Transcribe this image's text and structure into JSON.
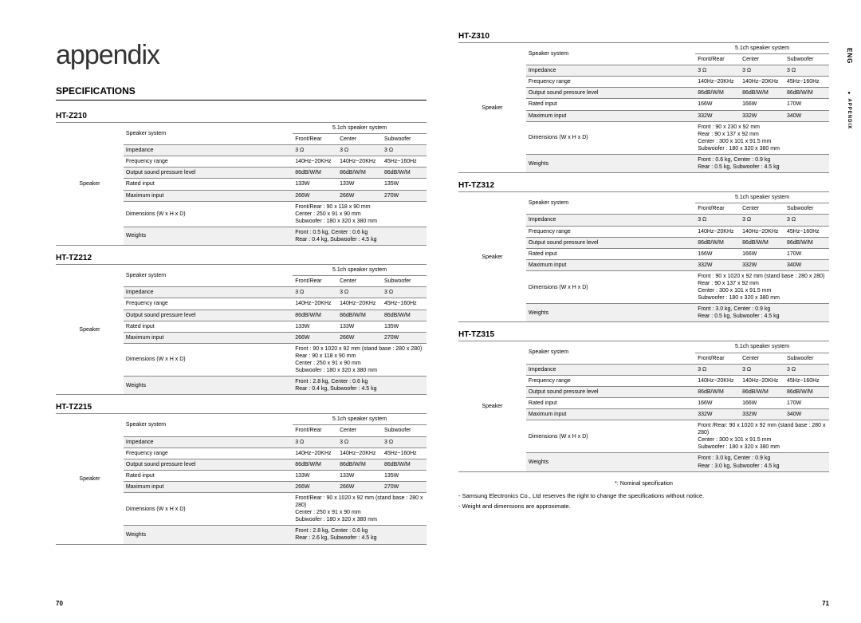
{
  "page_title": "appendix",
  "section_title": "SPECIFICATIONS",
  "side_tab_lang": "ENG",
  "side_tab_section": "● APPENDIX",
  "page_num_left": "70",
  "page_num_right": "71",
  "speaker_system_header": "5.1ch speaker system",
  "channels": [
    "Front/Rear",
    "Center",
    "Subwoofer"
  ],
  "side_label": "Speaker",
  "row_labels": {
    "speaker_system": "Speaker system",
    "impedance": "Impedance",
    "freq": "Frequency range",
    "ospl": "Output sound pressure level",
    "rated": "Rated input",
    "max": "Maximum input",
    "dim": "Dimensions  (W x H x D)",
    "weight": "Weights"
  },
  "models": {
    "HT_Z210": {
      "label": "HT-Z210",
      "impedance": [
        "3 Ω",
        "3 Ω",
        "3 Ω"
      ],
      "freq": [
        "140Hz~20KHz",
        "140Hz~20KHz",
        "45Hz~160Hz"
      ],
      "ospl": [
        "86dB/W/M",
        "86dB/W/M",
        "86dB/W/M"
      ],
      "rated": [
        "133W",
        "133W",
        "135W"
      ],
      "max": [
        "266W",
        "266W",
        "270W"
      ],
      "dim": "Front/Rear : 90 x 118 x 90 mm\nCenter : 250 x 91 x 90 mm\nSubwoofer : 180 x 320 x 380 mm",
      "weight": "Front : 0.5 kg, Center : 0.6 kg\nRear : 0.4 kg, Subwoofer : 4.5 kg"
    },
    "HT_TZ212": {
      "label": "HT-TZ212",
      "impedance": [
        "3 Ω",
        "3 Ω",
        "3 Ω"
      ],
      "freq": [
        "140Hz~20KHz",
        "140Hz~20KHz",
        "45Hz~160Hz"
      ],
      "ospl": [
        "86dB/W/M",
        "86dB/W/M",
        "86dB/W/M"
      ],
      "rated": [
        "133W",
        "133W",
        "135W"
      ],
      "max": [
        "266W",
        "266W",
        "270W"
      ],
      "dim": "Front : 90 x 1020 x 92 mm (stand base : 280 x 280)\nRear : 90 x 118 x 90 mm\nCenter : 250 x 91 x 90 mm\nSubwoofer : 180 x 320 x 380 mm",
      "weight": "Front : 2.8 kg, Center : 0.6 kg\nRear : 0.4 kg, Subwoofer : 4.5 kg"
    },
    "HT_TZ215": {
      "label": "HT-TZ215",
      "impedance": [
        "3 Ω",
        "3 Ω",
        "3 Ω"
      ],
      "freq": [
        "140Hz~20KHz",
        "140Hz~20KHz",
        "45Hz~160Hz"
      ],
      "ospl": [
        "86dB/W/M",
        "86dB/W/M",
        "86dB/W/M"
      ],
      "rated": [
        "133W",
        "133W",
        "135W"
      ],
      "max": [
        "266W",
        "266W",
        "270W"
      ],
      "dim": "Front/Rear : 90 x 1020 x 92 mm (stand base : 280 x 280)\nCenter : 250 x 91 x 90 mm\nSubwoofer : 180 x 320 x 380 mm",
      "weight": "Front : 2.8 kg, Center : 0.6 kg\nRear : 2.6 kg, Subwoofer : 4.5 kg"
    },
    "HT_Z310": {
      "label": "HT-Z310",
      "impedance": [
        "3 Ω",
        "3 Ω",
        "3 Ω"
      ],
      "freq": [
        "140Hz~20KHz",
        "140Hz~20KHz",
        "45Hz~160Hz"
      ],
      "ospl": [
        "86dB/W/M",
        "86dB/W/M",
        "86dB/W/M"
      ],
      "rated": [
        "166W",
        "166W",
        "170W"
      ],
      "max": [
        "332W",
        "332W",
        "340W"
      ],
      "dim": "Front : 90 x 230 x 92 mm\nRear : 90 x 137 x 92 mm\nCenter : 300 x 101 x 91.5 mm\nSubwoofer : 180 x 320 x 380 mm",
      "weight": "Front : 0.6 kg, Center : 0.9 kg\nRear : 0.5 kg, Subwoofer : 4.5 kg"
    },
    "HT_TZ312": {
      "label": "HT-TZ312",
      "impedance": [
        "3 Ω",
        "3 Ω",
        "3 Ω"
      ],
      "freq": [
        "140Hz~20KHz",
        "140Hz~20KHz",
        "45Hz~160Hz"
      ],
      "ospl": [
        "86dB/W/M",
        "86dB/W/M",
        "86dB/W/M"
      ],
      "rated": [
        "166W",
        "166W",
        "170W"
      ],
      "max": [
        "332W",
        "332W",
        "340W"
      ],
      "dim": "Front : 90 x 1020 x 92 mm (stand base : 280 x 280)\nRear : 90 x 137 x 92 mm\nCenter : 300 x 101 x 91.5 mm\nSubwoofer : 180 x 320 x 380 mm",
      "weight": "Front : 3.0 kg, Center : 0.9 kg\nRear : 0.5 kg, Subwoofer : 4.5 kg"
    },
    "HT_TZ315": {
      "label": "HT-TZ315",
      "impedance": [
        "3 Ω",
        "3 Ω",
        "3 Ω"
      ],
      "freq": [
        "140Hz~20KHz",
        "140Hz~20KHz",
        "45Hz~160Hz"
      ],
      "ospl": [
        "86dB/W/M",
        "86dB/W/M",
        "86dB/W/M"
      ],
      "rated": [
        "166W",
        "166W",
        "170W"
      ],
      "max": [
        "332W",
        "332W",
        "340W"
      ],
      "dim": "Front /Rear: 90 x 1020 x 92 mm (stand base : 280 x 280)\nCenter : 300 x 101 x 91.5 mm\nSubwoofer : 180 x 320 x 380 mm",
      "weight": "Front : 3.0 kg, Center : 0.9 kg\nRear : 3.0 kg, Subwoofer : 4.5 kg"
    }
  },
  "footnotes": {
    "nominal": "*: Nominal specification",
    "line1": "- Samsung Electronics Co., Ltd reserves the right to change the specifications without notice.",
    "line2": "- Weight and dimensions are approximate."
  },
  "colors": {
    "shaded_bg": "#f0f0f0",
    "border": "#888888",
    "text": "#000000",
    "page_bg": "#ffffff"
  }
}
